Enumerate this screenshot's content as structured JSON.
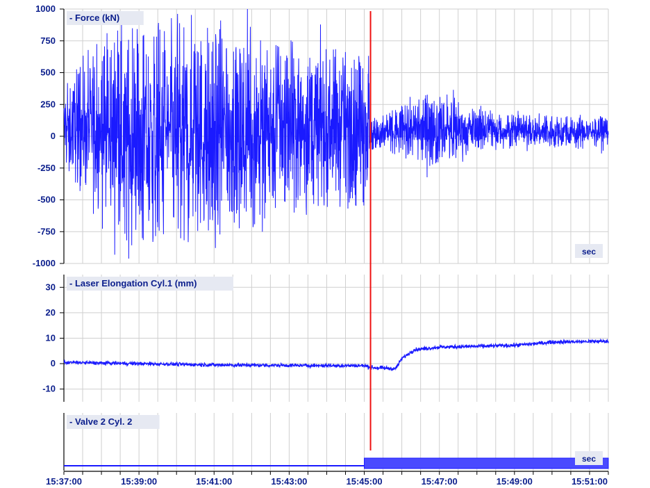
{
  "chart_data": {
    "type": "line",
    "x_axis": {
      "unit": "time",
      "range": [
        "15:37:00",
        "15:51:30"
      ],
      "tick_labels": [
        "15:37:00",
        "15:39:00",
        "15:41:00",
        "15:43:00",
        "15:45:00",
        "15:47:00",
        "15:49:00",
        "15:51:00"
      ]
    },
    "marker": {
      "time": "15:45:10",
      "color": "#ee1111"
    },
    "colors": {
      "series": "#1a1aff",
      "axis_text": "#0b1e8c",
      "grid": "#cfcfcf",
      "marker": "#ee1111",
      "title_box": "#e6e9f2"
    },
    "grid": true,
    "panels": [
      {
        "title": "- Force  (kN)",
        "unit_badge": "sec",
        "ylim": [
          -1000,
          1000
        ],
        "yticks": [
          "1000",
          "750",
          "500",
          "250",
          "0",
          "-250",
          "-500",
          "-750",
          "-1000"
        ],
        "series": [
          {
            "style": "noise_envelope",
            "points": [
              {
                "t": "15:37:00",
                "min": -280,
                "max": 420
              },
              {
                "t": "15:38:00",
                "min": -650,
                "max": 820
              },
              {
                "t": "15:39:00",
                "min": -960,
                "max": 890
              },
              {
                "t": "15:40:00",
                "min": -800,
                "max": 900
              },
              {
                "t": "15:41:00",
                "min": -920,
                "max": 920
              },
              {
                "t": "15:42:00",
                "min": -760,
                "max": 870
              },
              {
                "t": "15:43:00",
                "min": -620,
                "max": 780
              },
              {
                "t": "15:44:00",
                "min": -620,
                "max": 720
              },
              {
                "t": "15:45:00",
                "min": -550,
                "max": 700
              },
              {
                "t": "15:45:10",
                "min": -120,
                "max": 130
              },
              {
                "t": "15:46:00",
                "min": -150,
                "max": 240
              },
              {
                "t": "15:47:00",
                "min": -270,
                "max": 370
              },
              {
                "t": "15:48:00",
                "min": -120,
                "max": 220
              },
              {
                "t": "15:49:00",
                "min": -100,
                "max": 180
              },
              {
                "t": "15:50:00",
                "min": -100,
                "max": 170
              },
              {
                "t": "15:51:30",
                "min": -100,
                "max": 170
              }
            ]
          }
        ]
      },
      {
        "title": "- Laser Elongation Cyl.1  (mm)",
        "ylim": [
          -15,
          35
        ],
        "yticks": [
          "30",
          "20",
          "10",
          "0",
          "-10"
        ],
        "series": [
          {
            "style": "line",
            "points": [
              {
                "t": "15:37:00",
                "y": 0.5
              },
              {
                "t": "15:39:00",
                "y": 0.0
              },
              {
                "t": "15:41:00",
                "y": -0.5
              },
              {
                "t": "15:43:00",
                "y": -0.7
              },
              {
                "t": "15:45:00",
                "y": -0.8
              },
              {
                "t": "15:45:10",
                "y": -1.5
              },
              {
                "t": "15:45:50",
                "y": -2.0
              },
              {
                "t": "15:46:00",
                "y": 2.0
              },
              {
                "t": "15:46:20",
                "y": 5.5
              },
              {
                "t": "15:47:00",
                "y": 6.5
              },
              {
                "t": "15:48:00",
                "y": 6.8
              },
              {
                "t": "15:49:00",
                "y": 7.2
              },
              {
                "t": "15:49:40",
                "y": 8.0
              },
              {
                "t": "15:50:00",
                "y": 8.5
              },
              {
                "t": "15:51:30",
                "y": 8.8
              }
            ]
          }
        ]
      },
      {
        "title": "- Valve 2 Cyl. 2",
        "unit_badge": "sec",
        "ylim": [
          0,
          1
        ],
        "yticks": [],
        "series": [
          {
            "style": "step",
            "points": [
              {
                "t": "15:37:00",
                "y": 0
              },
              {
                "t": "15:45:00",
                "y": 0
              },
              {
                "t": "15:45:00",
                "y": 1
              },
              {
                "t": "15:51:30",
                "y": 1
              }
            ]
          }
        ]
      }
    ]
  }
}
